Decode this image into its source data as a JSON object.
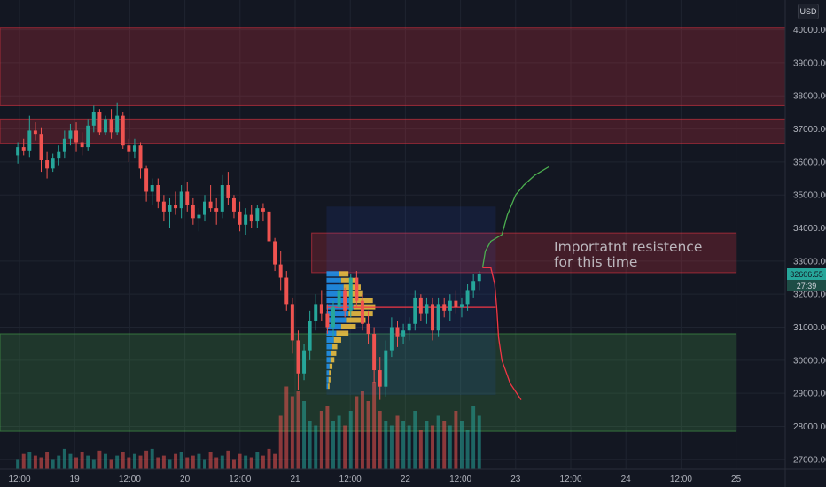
{
  "currency": "USD",
  "chart_data": {
    "type": "candlestick",
    "y_axis": {
      "ylim": [
        26700,
        40900
      ],
      "ticks": [
        "40000.00",
        "39000.00",
        "38000.00",
        "37000.00",
        "36000.00",
        "35000.00",
        "34000.00",
        "33000.00",
        "32000.00",
        "31000.00",
        "30000.00",
        "29000.00",
        "28000.00",
        "27000.00"
      ],
      "tick_values": [
        40000,
        39000,
        38000,
        37000,
        36000,
        35000,
        34000,
        33000,
        32000,
        31000,
        30000,
        29000,
        28000,
        27000
      ]
    },
    "x_axis": {
      "ticks": [
        "12:00",
        "19",
        "12:00",
        "20",
        "12:00",
        "21",
        "12:00",
        "22",
        "12:00",
        "23",
        "12:00",
        "24",
        "12:00",
        "25"
      ],
      "tick_values": [
        0,
        1,
        2,
        3,
        4,
        5,
        6,
        7,
        8,
        9,
        10,
        11,
        12,
        13
      ]
    },
    "current_price": "32606.55",
    "countdown": "27:39",
    "current_price_value": 32606.55,
    "grid": true,
    "zones": [
      {
        "kind": "resistance",
        "x_range": [
          -0.5,
          16
        ],
        "y_range": [
          37700,
          40050
        ],
        "color": "#f23645"
      },
      {
        "kind": "resistance",
        "x_range": [
          -0.5,
          16
        ],
        "y_range": [
          36550,
          37300
        ],
        "color": "#f23645"
      },
      {
        "kind": "resistance",
        "x_range": [
          5.3,
          13.0
        ],
        "y_range": [
          32650,
          33850
        ],
        "color": "#f23645"
      },
      {
        "kind": "support",
        "x_range": [
          -0.5,
          13.0
        ],
        "y_range": [
          27850,
          30800
        ],
        "color": "#4caf50"
      }
    ],
    "range_box": {
      "x_range": [
        5.57,
        8.64
      ],
      "y_range": [
        28950,
        34650
      ]
    },
    "poc": {
      "x_range": [
        5.57,
        8.64
      ],
      "y": 31600
    },
    "annotation": "Importatnt resistence\nfor this time",
    "projection_up": [
      [
        8.4,
        32800
      ],
      [
        8.45,
        33300
      ],
      [
        8.55,
        33600
      ],
      [
        8.75,
        33800
      ],
      [
        8.85,
        34400
      ],
      [
        9.0,
        35000
      ],
      [
        9.15,
        35300
      ],
      [
        9.35,
        35600
      ],
      [
        9.6,
        35850
      ]
    ],
    "projection_down": [
      [
        8.4,
        32800
      ],
      [
        8.55,
        32800
      ],
      [
        8.62,
        32300
      ],
      [
        8.66,
        31500
      ],
      [
        8.69,
        30700
      ],
      [
        8.75,
        30000
      ],
      [
        8.9,
        29300
      ],
      [
        9.1,
        28800
      ]
    ],
    "candles": [
      {
        "o": 36200,
        "h": 36600,
        "l": 35950,
        "c": 36450
      },
      {
        "o": 36450,
        "h": 36700,
        "l": 36200,
        "c": 36350
      },
      {
        "o": 36350,
        "h": 37400,
        "l": 36150,
        "c": 36950
      },
      {
        "o": 36950,
        "h": 37200,
        "l": 36650,
        "c": 36850
      },
      {
        "o": 36850,
        "h": 37050,
        "l": 35700,
        "c": 36050
      },
      {
        "o": 36050,
        "h": 36300,
        "l": 35500,
        "c": 35800
      },
      {
        "o": 35800,
        "h": 36250,
        "l": 35700,
        "c": 36100
      },
      {
        "o": 36100,
        "h": 36500,
        "l": 35900,
        "c": 36300
      },
      {
        "o": 36300,
        "h": 36950,
        "l": 36100,
        "c": 36700
      },
      {
        "o": 36700,
        "h": 37150,
        "l": 36500,
        "c": 36950
      },
      {
        "o": 36950,
        "h": 37200,
        "l": 36300,
        "c": 36600
      },
      {
        "o": 36600,
        "h": 36900,
        "l": 36200,
        "c": 36450
      },
      {
        "o": 36450,
        "h": 37300,
        "l": 36350,
        "c": 37100
      },
      {
        "o": 37100,
        "h": 37700,
        "l": 36900,
        "c": 37500
      },
      {
        "o": 37500,
        "h": 37600,
        "l": 36800,
        "c": 36900
      },
      {
        "o": 36900,
        "h": 37400,
        "l": 36800,
        "c": 37300
      },
      {
        "o": 37300,
        "h": 37600,
        "l": 36700,
        "c": 36900
      },
      {
        "o": 36900,
        "h": 37800,
        "l": 36800,
        "c": 37400
      },
      {
        "o": 37400,
        "h": 37500,
        "l": 36400,
        "c": 36500
      },
      {
        "o": 36500,
        "h": 36700,
        "l": 36000,
        "c": 36300
      },
      {
        "o": 36300,
        "h": 36700,
        "l": 36100,
        "c": 36500
      },
      {
        "o": 36500,
        "h": 36600,
        "l": 35500,
        "c": 35800
      },
      {
        "o": 35800,
        "h": 35900,
        "l": 34800,
        "c": 35100
      },
      {
        "o": 35100,
        "h": 35500,
        "l": 34700,
        "c": 35300
      },
      {
        "o": 35300,
        "h": 35500,
        "l": 34600,
        "c": 34800
      },
      {
        "o": 34800,
        "h": 35000,
        "l": 34200,
        "c": 34500
      },
      {
        "o": 34500,
        "h": 34900,
        "l": 34000,
        "c": 34700
      },
      {
        "o": 34700,
        "h": 35100,
        "l": 34400,
        "c": 34600
      },
      {
        "o": 34600,
        "h": 35300,
        "l": 34300,
        "c": 35100
      },
      {
        "o": 35100,
        "h": 35400,
        "l": 34500,
        "c": 34700
      },
      {
        "o": 34700,
        "h": 34900,
        "l": 34100,
        "c": 34300
      },
      {
        "o": 34300,
        "h": 34600,
        "l": 33900,
        "c": 34400
      },
      {
        "o": 34400,
        "h": 35000,
        "l": 34200,
        "c": 34800
      },
      {
        "o": 34800,
        "h": 35300,
        "l": 34500,
        "c": 34600
      },
      {
        "o": 34600,
        "h": 34900,
        "l": 34100,
        "c": 34500
      },
      {
        "o": 34500,
        "h": 35600,
        "l": 34300,
        "c": 35300
      },
      {
        "o": 35300,
        "h": 35700,
        "l": 34700,
        "c": 34900
      },
      {
        "o": 34900,
        "h": 35000,
        "l": 34300,
        "c": 34500
      },
      {
        "o": 34500,
        "h": 34800,
        "l": 33900,
        "c": 34100
      },
      {
        "o": 34100,
        "h": 34600,
        "l": 33800,
        "c": 34400
      },
      {
        "o": 34400,
        "h": 34700,
        "l": 34000,
        "c": 34200
      },
      {
        "o": 34200,
        "h": 34700,
        "l": 34000,
        "c": 34600
      },
      {
        "o": 34600,
        "h": 34750,
        "l": 34200,
        "c": 34500
      },
      {
        "o": 34500,
        "h": 34600,
        "l": 33400,
        "c": 33600
      },
      {
        "o": 33600,
        "h": 33700,
        "l": 32700,
        "c": 32900
      },
      {
        "o": 32900,
        "h": 33300,
        "l": 32100,
        "c": 32500
      },
      {
        "o": 32500,
        "h": 32700,
        "l": 31500,
        "c": 31700
      },
      {
        "o": 31700,
        "h": 31900,
        "l": 30200,
        "c": 30600
      },
      {
        "o": 30600,
        "h": 30900,
        "l": 29100,
        "c": 29600
      },
      {
        "o": 29600,
        "h": 30500,
        "l": 29400,
        "c": 30300
      },
      {
        "o": 30300,
        "h": 31500,
        "l": 30000,
        "c": 31200
      },
      {
        "o": 31200,
        "h": 32000,
        "l": 30900,
        "c": 31700
      },
      {
        "o": 31700,
        "h": 32100,
        "l": 31200,
        "c": 31400
      },
      {
        "o": 31400,
        "h": 31700,
        "l": 30800,
        "c": 31000
      },
      {
        "o": 31000,
        "h": 31800,
        "l": 30700,
        "c": 31600
      },
      {
        "o": 31600,
        "h": 32500,
        "l": 31400,
        "c": 32100
      },
      {
        "o": 32100,
        "h": 32200,
        "l": 31300,
        "c": 31500
      },
      {
        "o": 31500,
        "h": 32600,
        "l": 31300,
        "c": 32500
      },
      {
        "o": 32500,
        "h": 32700,
        "l": 31600,
        "c": 31800
      },
      {
        "o": 31800,
        "h": 32000,
        "l": 30900,
        "c": 31100
      },
      {
        "o": 31100,
        "h": 31500,
        "l": 30500,
        "c": 30800
      },
      {
        "o": 30800,
        "h": 31000,
        "l": 29300,
        "c": 29700
      },
      {
        "o": 29700,
        "h": 30100,
        "l": 28800,
        "c": 29200
      },
      {
        "o": 29200,
        "h": 30600,
        "l": 28900,
        "c": 30300
      },
      {
        "o": 30300,
        "h": 31300,
        "l": 30100,
        "c": 31000
      },
      {
        "o": 31000,
        "h": 31200,
        "l": 30400,
        "c": 30700
      },
      {
        "o": 30700,
        "h": 31100,
        "l": 30500,
        "c": 30900
      },
      {
        "o": 30900,
        "h": 31300,
        "l": 30600,
        "c": 31100
      },
      {
        "o": 31100,
        "h": 32100,
        "l": 30900,
        "c": 31900
      },
      {
        "o": 31900,
        "h": 32000,
        "l": 31200,
        "c": 31400
      },
      {
        "o": 31400,
        "h": 31900,
        "l": 31100,
        "c": 31700
      },
      {
        "o": 31700,
        "h": 31900,
        "l": 30600,
        "c": 30900
      },
      {
        "o": 30900,
        "h": 31900,
        "l": 30700,
        "c": 31700
      },
      {
        "o": 31700,
        "h": 31900,
        "l": 31300,
        "c": 31500
      },
      {
        "o": 31500,
        "h": 32000,
        "l": 31200,
        "c": 31800
      },
      {
        "o": 31800,
        "h": 32100,
        "l": 31400,
        "c": 31600
      },
      {
        "o": 31600,
        "h": 31900,
        "l": 31300,
        "c": 31700
      },
      {
        "o": 31700,
        "h": 32300,
        "l": 31500,
        "c": 32100
      },
      {
        "o": 32100,
        "h": 32600,
        "l": 31900,
        "c": 32400
      },
      {
        "o": 32400,
        "h": 32700,
        "l": 32100,
        "c": 32606
      }
    ],
    "volumes": [
      0.3,
      0.45,
      0.5,
      0.4,
      0.35,
      0.5,
      0.3,
      0.4,
      0.6,
      0.45,
      0.35,
      0.5,
      0.4,
      0.3,
      0.55,
      0.45,
      0.3,
      0.4,
      0.5,
      0.35,
      0.45,
      0.4,
      0.55,
      0.6,
      0.35,
      0.4,
      0.3,
      0.45,
      0.5,
      0.35,
      0.4,
      0.45,
      0.3,
      0.5,
      0.35,
      0.4,
      0.55,
      0.3,
      0.45,
      0.4,
      0.35,
      0.5,
      0.4,
      0.6,
      0.45,
      0.55,
      0.85,
      0.75,
      0.8,
      0.7,
      0.5,
      0.45,
      0.6,
      0.65,
      0.5,
      0.55,
      0.45,
      0.6,
      0.75,
      0.8,
      0.7,
      0.9,
      0.6,
      0.5,
      0.45,
      0.55,
      0.5,
      0.45,
      0.6,
      0.4,
      0.5,
      0.45,
      0.55,
      0.5,
      0.45,
      0.6,
      0.5,
      0.4,
      0.65,
      0.55
    ],
    "volume_profile": [
      {
        "y": 32600,
        "up": 0.25,
        "down": 0.2
      },
      {
        "y": 32400,
        "up": 0.3,
        "down": 0.3
      },
      {
        "y": 32200,
        "up": 0.35,
        "down": 0.35
      },
      {
        "y": 32000,
        "up": 0.4,
        "down": 0.35
      },
      {
        "y": 31800,
        "up": 0.5,
        "down": 0.45
      },
      {
        "y": 31600,
        "up": 0.55,
        "down": 0.45
      },
      {
        "y": 31400,
        "up": 0.45,
        "down": 0.5
      },
      {
        "y": 31200,
        "up": 0.4,
        "down": 0.4
      },
      {
        "y": 31000,
        "up": 0.3,
        "down": 0.3
      },
      {
        "y": 30800,
        "up": 0.2,
        "down": 0.25
      },
      {
        "y": 30600,
        "up": 0.15,
        "down": 0.15
      },
      {
        "y": 30400,
        "up": 0.12,
        "down": 0.1
      },
      {
        "y": 30200,
        "up": 0.1,
        "down": 0.1
      },
      {
        "y": 30000,
        "up": 0.08,
        "down": 0.08
      },
      {
        "y": 29800,
        "up": 0.06,
        "down": 0.06
      },
      {
        "y": 29600,
        "up": 0.05,
        "down": 0.05
      },
      {
        "y": 29400,
        "up": 0.04,
        "down": 0.04
      },
      {
        "y": 29200,
        "up": 0.03,
        "down": 0.03
      }
    ]
  }
}
